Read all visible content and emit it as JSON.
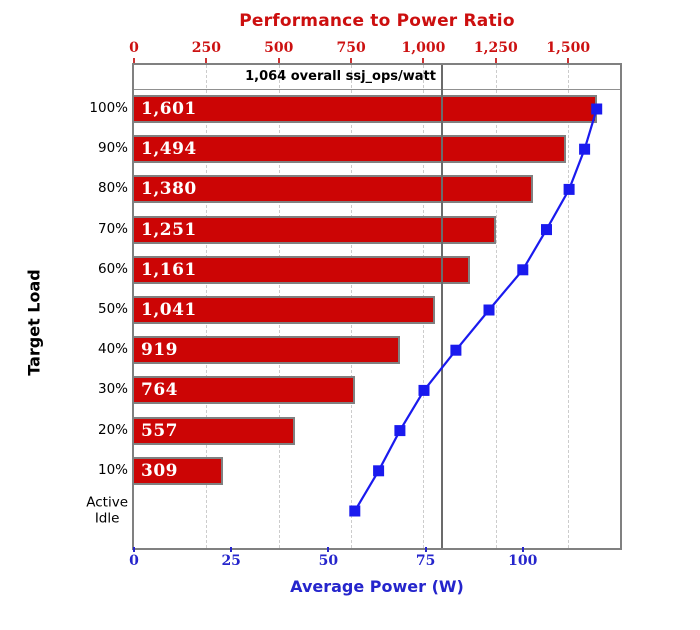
{
  "chart_data": {
    "type": "bar",
    "orientation": "horizontal",
    "categories": [
      "100%",
      "90%",
      "80%",
      "70%",
      "60%",
      "50%",
      "40%",
      "30%",
      "20%",
      "10%",
      "Active\nIdle"
    ],
    "series": [
      {
        "name": "Performance to Power Ratio",
        "type": "bar",
        "axis": "top",
        "color": "#cc0505",
        "values": [
          1601,
          1494,
          1380,
          1251,
          1161,
          1041,
          919,
          764,
          557,
          309,
          null
        ],
        "labels": [
          "1,601",
          "1,494",
          "1,380",
          "1,251",
          "1,161",
          "1,041",
          "919",
          "764",
          "557",
          "309",
          ""
        ]
      },
      {
        "name": "Average Power (W)",
        "type": "line",
        "axis": "bottom",
        "color": "#1a1aee",
        "values": [
          119.0,
          115.9,
          111.9,
          106.1,
          100.0,
          91.3,
          82.8,
          74.6,
          68.4,
          62.9,
          56.8
        ]
      }
    ],
    "top_axis": {
      "title": "Performance to Power Ratio",
      "color": "#cc0f0f",
      "tick_values": [
        0,
        250,
        500,
        750,
        1000,
        1250,
        1500
      ],
      "tick_labels": [
        "0",
        "250",
        "500",
        "750",
        "1,000",
        "1,250",
        "1,500"
      ],
      "range": [
        0,
        1679
      ]
    },
    "bottom_axis": {
      "title": "Average Power (W)",
      "color": "#2525cc",
      "tick_values": [
        0,
        25,
        50,
        75,
        100
      ],
      "tick_labels": [
        "0",
        "25",
        "50",
        "75",
        "100"
      ],
      "range": [
        0,
        125
      ]
    },
    "left_axis": {
      "title": "Target Load"
    },
    "reference_line": {
      "value": 1064,
      "label": "1,064 overall ssj_ops/watt",
      "color": "#6b6b6b"
    },
    "grid": {
      "vertical_dashed_at_top_ticks": true
    },
    "colors": {
      "bar_fill": "#cc0505",
      "bar_border": "#808080",
      "frame": "#808080",
      "grid": "#cccccc",
      "bar_value_text": "#ffffff",
      "category_text": "#000000",
      "background": "#ffffff"
    }
  }
}
